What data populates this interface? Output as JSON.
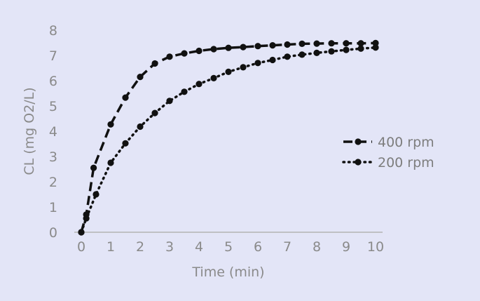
{
  "chart_data": {
    "type": "line",
    "title": "",
    "xlabel": "Time (min)",
    "ylabel": "CL (mg O2/L)",
    "xlim": [
      0,
      10
    ],
    "ylim": [
      0,
      8
    ],
    "x_ticks": [
      0,
      1,
      2,
      3,
      4,
      5,
      6,
      7,
      8,
      9,
      10
    ],
    "y_ticks": [
      0,
      1,
      2,
      3,
      4,
      5,
      6,
      7,
      8
    ],
    "grid": false,
    "legend_position": "right",
    "colors": {
      "series": "#111111",
      "axis": "#b3b3b3",
      "text": "#8a8a8a",
      "background": "#e3e5f7"
    },
    "series": [
      {
        "name": "400 rpm",
        "line_style": "dashed",
        "x": [
          0,
          0.17,
          0.42,
          1,
          1.5,
          2,
          2.5,
          3,
          3.5,
          4,
          4.5,
          5,
          5.5,
          6,
          6.5,
          7,
          7.5,
          8,
          8.5,
          9,
          9.5,
          10
        ],
        "y": [
          0,
          0.7,
          2.55,
          4.27,
          5.33,
          6.15,
          6.68,
          6.95,
          7.08,
          7.18,
          7.25,
          7.3,
          7.33,
          7.37,
          7.4,
          7.43,
          7.46,
          7.47,
          7.48,
          7.48,
          7.48,
          7.49
        ]
      },
      {
        "name": "200 rpm",
        "line_style": "dotted",
        "x": [
          0,
          0.17,
          0.5,
          1,
          1.5,
          2,
          2.5,
          3,
          3.5,
          4,
          4.5,
          5,
          5.5,
          6,
          6.5,
          7,
          7.5,
          8,
          8.5,
          9,
          9.5,
          10
        ],
        "y": [
          0,
          0.55,
          1.5,
          2.75,
          3.52,
          4.18,
          4.72,
          5.2,
          5.56,
          5.87,
          6.1,
          6.35,
          6.53,
          6.7,
          6.82,
          6.95,
          7.03,
          7.1,
          7.16,
          7.22,
          7.27,
          7.31
        ]
      }
    ]
  }
}
